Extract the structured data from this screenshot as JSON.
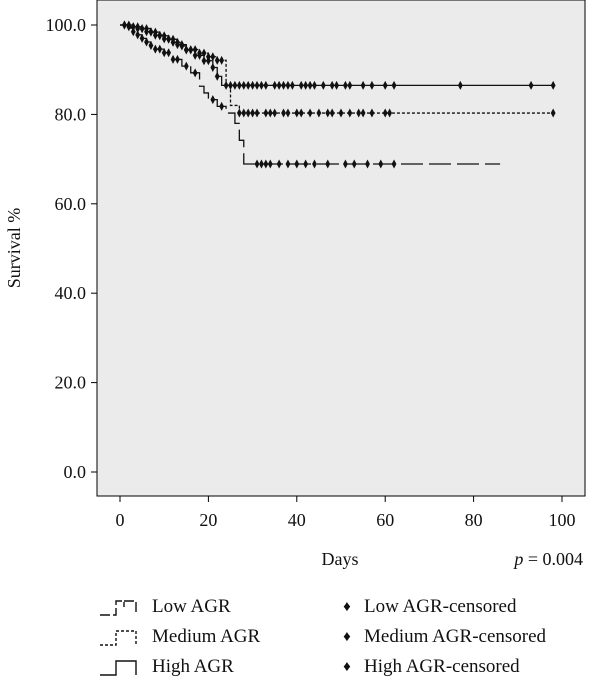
{
  "chart_data": {
    "type": "line",
    "xlabel": "Days",
    "ylabel": "Survival %",
    "xlim": [
      0,
      100
    ],
    "ylim": [
      0,
      100
    ],
    "x_ticks": [
      "0",
      "20",
      "40",
      "60",
      "80",
      "100"
    ],
    "y_ticks": [
      "0.0",
      "20.0",
      "40.0",
      "60.0",
      "80.0",
      "100.0"
    ],
    "annotation": {
      "p_symbol": "p",
      "p_text": " = 0.004"
    },
    "grid": false,
    "legend_position": "bottom",
    "background_color": "#ebebeb",
    "series": [
      {
        "name": "Low AGR",
        "censored_name": "Low AGR-censored",
        "dash": "long-dash",
        "steps": [
          [
            0,
            100
          ],
          [
            2,
            99.3
          ],
          [
            3,
            98.5
          ],
          [
            4,
            97.8
          ],
          [
            5,
            97
          ],
          [
            6,
            96.2
          ],
          [
            7,
            95.4
          ],
          [
            8,
            94.6
          ],
          [
            10,
            93.8
          ],
          [
            12,
            92.3
          ],
          [
            14,
            90.8
          ],
          [
            16,
            89.3
          ],
          [
            18,
            86.3
          ],
          [
            19,
            84.8
          ],
          [
            20,
            83.3
          ],
          [
            22,
            81.8
          ],
          [
            24,
            80.3
          ],
          [
            26,
            78
          ],
          [
            27,
            74.2
          ],
          [
            28,
            68.9
          ],
          [
            86,
            68.9
          ]
        ],
        "censored": [
          3,
          4,
          5,
          6,
          7,
          8,
          9,
          10,
          11,
          12,
          13,
          15,
          17,
          21,
          23,
          31,
          32,
          33,
          34,
          36,
          38,
          40,
          42,
          44,
          47,
          51,
          53,
          56,
          59,
          62
        ]
      },
      {
        "name": "Medium AGR",
        "censored_name": "Medium AGR-censored",
        "dash": "short-dash",
        "steps": [
          [
            0,
            100
          ],
          [
            2,
            99.6
          ],
          [
            4,
            99.2
          ],
          [
            6,
            98.5
          ],
          [
            8,
            97.7
          ],
          [
            10,
            96.9
          ],
          [
            12,
            96.1
          ],
          [
            14,
            95.3
          ],
          [
            15,
            94.5
          ],
          [
            18,
            93.7
          ],
          [
            20,
            92.9
          ],
          [
            22,
            92.1
          ],
          [
            24,
            86.6
          ],
          [
            25,
            82
          ],
          [
            27,
            80.3
          ],
          [
            98,
            80.3
          ]
        ],
        "censored": [
          1,
          2,
          3,
          4,
          5,
          6,
          7,
          8,
          9,
          10,
          11,
          12,
          13,
          14,
          15,
          16,
          17,
          18,
          19,
          20,
          21,
          22,
          23,
          27,
          28,
          29,
          30,
          31,
          33,
          34,
          35,
          37,
          38,
          40,
          41,
          43,
          45,
          47,
          48,
          50,
          52,
          54,
          55,
          57,
          60,
          61,
          98
        ]
      },
      {
        "name": "High AGR",
        "censored_name": "High AGR-censored",
        "dash": "solid",
        "steps": [
          [
            0,
            100
          ],
          [
            3,
            99.6
          ],
          [
            5,
            99.2
          ],
          [
            7,
            98.4
          ],
          [
            9,
            97.6
          ],
          [
            11,
            96.8
          ],
          [
            13,
            95.6
          ],
          [
            15,
            94.4
          ],
          [
            17,
            93.2
          ],
          [
            19,
            92
          ],
          [
            21,
            90.5
          ],
          [
            22,
            88.5
          ],
          [
            23,
            86.5
          ],
          [
            98,
            86.5
          ]
        ],
        "censored": [
          1,
          2,
          3,
          4,
          5,
          6,
          7,
          8,
          9,
          10,
          11,
          12,
          13,
          14,
          15,
          16,
          17,
          18,
          19,
          20,
          21,
          22,
          24,
          25,
          26,
          27,
          28,
          29,
          30,
          31,
          32,
          33,
          35,
          36,
          37,
          38,
          39,
          41,
          42,
          43,
          44,
          46,
          48,
          49,
          51,
          52,
          55,
          57,
          60,
          62,
          77,
          93,
          98
        ]
      }
    ]
  }
}
